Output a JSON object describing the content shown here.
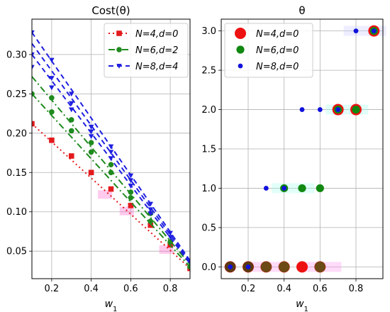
{
  "chart_data": [
    {
      "type": "line",
      "title": "Cost(θ)",
      "xlabel": "w",
      "xlabel_sub": "1",
      "ylabel": "",
      "xlim": [
        0.1,
        0.9
      ],
      "ylim": [
        0.015,
        0.345
      ],
      "xticks": [
        0.2,
        0.4,
        0.6,
        0.8
      ],
      "xtick_labels": [
        "0.2",
        "0.4",
        "0.6",
        "0.8"
      ],
      "yticks": [
        0.05,
        0.1,
        0.15,
        0.2,
        0.25,
        0.3
      ],
      "ytick_labels": [
        "0.05",
        "0.10",
        "0.15",
        "0.20",
        "0.25",
        "0.30"
      ],
      "grid": true,
      "legend_position": "top-right",
      "series": [
        {
          "name": "N=4,d=0",
          "label_main": "N=4,d=0",
          "color": "#e31a1c",
          "linestyle": "dotted",
          "marker": "square",
          "lines": [
            {
              "x": [
                0.1,
                0.9
              ],
              "y": [
                0.212,
                0.028
              ]
            }
          ],
          "points": [
            {
              "x": 0.1,
              "y": 0.212
            },
            {
              "x": 0.2,
              "y": 0.191
            },
            {
              "x": 0.3,
              "y": 0.171
            },
            {
              "x": 0.4,
              "y": 0.15
            },
            {
              "x": 0.5,
              "y": 0.129
            },
            {
              "x": 0.6,
              "y": 0.108
            },
            {
              "x": 0.7,
              "y": 0.083
            },
            {
              "x": 0.8,
              "y": 0.058
            },
            {
              "x": 0.9,
              "y": 0.028
            }
          ]
        },
        {
          "name": "N=6,d=2",
          "label_main": "N=6,d=2",
          "color": "#1f8a1f",
          "linestyle": "dashdot",
          "marker": "circle",
          "lines": [
            {
              "x": [
                0.1,
                0.9
              ],
              "y": [
                0.25,
                0.03
              ]
            },
            {
              "x": [
                0.1,
                0.9
              ],
              "y": [
                0.272,
                0.033
              ]
            }
          ],
          "points": [
            {
              "x": 0.1,
              "y": 0.25
            },
            {
              "x": 0.2,
              "y": 0.245
            },
            {
              "x": 0.2,
              "y": 0.227
            },
            {
              "x": 0.3,
              "y": 0.217
            },
            {
              "x": 0.3,
              "y": 0.203
            },
            {
              "x": 0.4,
              "y": 0.188
            },
            {
              "x": 0.4,
              "y": 0.176
            },
            {
              "x": 0.5,
              "y": 0.16
            },
            {
              "x": 0.5,
              "y": 0.15
            },
            {
              "x": 0.6,
              "y": 0.125
            },
            {
              "x": 0.6,
              "y": 0.118
            },
            {
              "x": 0.7,
              "y": 0.098
            },
            {
              "x": 0.7,
              "y": 0.088
            },
            {
              "x": 0.8,
              "y": 0.062
            },
            {
              "x": 0.9,
              "y": 0.03
            }
          ]
        },
        {
          "name": "N=8,d=4",
          "label_main": "N=8,d=4",
          "color": "#1f1fe0",
          "linestyle": "dashed",
          "marker": "triangle-down",
          "lines": [
            {
              "x": [
                0.1,
                0.9
              ],
              "y": [
                0.3,
                0.034
              ]
            },
            {
              "x": [
                0.1,
                0.9
              ],
              "y": [
                0.314,
                0.036
              ]
            },
            {
              "x": [
                0.1,
                0.9
              ],
              "y": [
                0.328,
                0.038
              ]
            }
          ],
          "points": [
            {
              "x": 0.1,
              "y": 0.328
            },
            {
              "x": 0.1,
              "y": 0.3
            },
            {
              "x": 0.1,
              "y": 0.284
            },
            {
              "x": 0.2,
              "y": 0.293
            },
            {
              "x": 0.2,
              "y": 0.27
            },
            {
              "x": 0.2,
              "y": 0.258
            },
            {
              "x": 0.3,
              "y": 0.25
            },
            {
              "x": 0.3,
              "y": 0.238
            },
            {
              "x": 0.3,
              "y": 0.23
            },
            {
              "x": 0.4,
              "y": 0.208
            },
            {
              "x": 0.4,
              "y": 0.202
            },
            {
              "x": 0.4,
              "y": 0.196
            },
            {
              "x": 0.5,
              "y": 0.183
            },
            {
              "x": 0.5,
              "y": 0.176
            },
            {
              "x": 0.5,
              "y": 0.168
            },
            {
              "x": 0.6,
              "y": 0.146
            },
            {
              "x": 0.6,
              "y": 0.14
            },
            {
              "x": 0.6,
              "y": 0.133
            },
            {
              "x": 0.7,
              "y": 0.11
            },
            {
              "x": 0.7,
              "y": 0.103
            },
            {
              "x": 0.7,
              "y": 0.098
            },
            {
              "x": 0.8,
              "y": 0.073
            },
            {
              "x": 0.8,
              "y": 0.068
            },
            {
              "x": 0.9,
              "y": 0.036
            }
          ]
        }
      ],
      "highlights": [
        {
          "x": 0.47,
          "y": 0.122,
          "color": "#ff66cc"
        },
        {
          "x": 0.58,
          "y": 0.101,
          "color": "#ff66cc"
        },
        {
          "x": 0.78,
          "y": 0.052,
          "color": "#ff66cc"
        }
      ]
    },
    {
      "type": "scatter",
      "title": "θ",
      "xlabel": "w",
      "xlabel_sub": "1",
      "ylabel": "",
      "xlim": [
        0.05,
        0.95
      ],
      "ylim": [
        -0.15,
        3.15
      ],
      "xticks": [
        0.2,
        0.4,
        0.6,
        0.8
      ],
      "xtick_labels": [
        "0.2",
        "0.4",
        "0.6",
        "0.8"
      ],
      "yticks": [
        0.0,
        0.5,
        1.0,
        1.5,
        2.0,
        2.5,
        3.0
      ],
      "ytick_labels": [
        "0.0",
        "0.5",
        "1.0",
        "1.5",
        "2.0",
        "2.5",
        "3.0"
      ],
      "grid": true,
      "legend_position": "top-left",
      "series": [
        {
          "name": "N=4,d=0",
          "color": "#ee1111",
          "marker_size": "large",
          "points": [
            {
              "x": 0.1,
              "y": 0
            },
            {
              "x": 0.2,
              "y": 0
            },
            {
              "x": 0.3,
              "y": 0
            },
            {
              "x": 0.4,
              "y": 0
            },
            {
              "x": 0.5,
              "y": 0
            },
            {
              "x": 0.6,
              "y": 0
            },
            {
              "x": 0.7,
              "y": 2
            },
            {
              "x": 0.8,
              "y": 2
            },
            {
              "x": 0.9,
              "y": 3
            }
          ]
        },
        {
          "name": "N=6,d=0",
          "color": "#118811",
          "marker_size": "medium",
          "points": [
            {
              "x": 0.1,
              "y": 0
            },
            {
              "x": 0.2,
              "y": 0
            },
            {
              "x": 0.3,
              "y": 0
            },
            {
              "x": 0.4,
              "y": 0
            },
            {
              "x": 0.6,
              "y": 0
            },
            {
              "x": 0.4,
              "y": 1
            },
            {
              "x": 0.5,
              "y": 1
            },
            {
              "x": 0.6,
              "y": 1
            },
            {
              "x": 0.7,
              "y": 2
            },
            {
              "x": 0.8,
              "y": 2
            },
            {
              "x": 0.9,
              "y": 3
            }
          ]
        },
        {
          "name": "N=8,d=0",
          "color": "#1111dd",
          "marker_size": "small",
          "points": [
            {
              "x": 0.1,
              "y": 0
            },
            {
              "x": 0.2,
              "y": 0
            },
            {
              "x": 0.3,
              "y": 1
            },
            {
              "x": 0.4,
              "y": 1
            },
            {
              "x": 0.5,
              "y": 2
            },
            {
              "x": 0.6,
              "y": 2
            },
            {
              "x": 0.7,
              "y": 2
            },
            {
              "x": 0.8,
              "y": 3
            },
            {
              "x": 0.9,
              "y": 3
            }
          ]
        }
      ],
      "overlap_fills": [
        {
          "x": 0.1,
          "y": 0,
          "color": "#5a3a10"
        },
        {
          "x": 0.2,
          "y": 0,
          "color": "#5a3a10"
        },
        {
          "x": 0.3,
          "y": 0,
          "color": "#6b4a15"
        },
        {
          "x": 0.4,
          "y": 0,
          "color": "#6b4a15"
        },
        {
          "x": 0.6,
          "y": 0,
          "color": "#6b4a15"
        }
      ],
      "highlights": [
        {
          "x": 0.3,
          "y": 0,
          "color": "#ff99ee"
        },
        {
          "x": 0.6,
          "y": 0,
          "color": "#ff99ee"
        },
        {
          "x": 0.45,
          "y": 1,
          "color": "#aaffee"
        },
        {
          "x": 0.75,
          "y": 2,
          "color": "#aaffee"
        },
        {
          "x": 0.85,
          "y": 3,
          "color": "#ccccff"
        }
      ]
    }
  ]
}
